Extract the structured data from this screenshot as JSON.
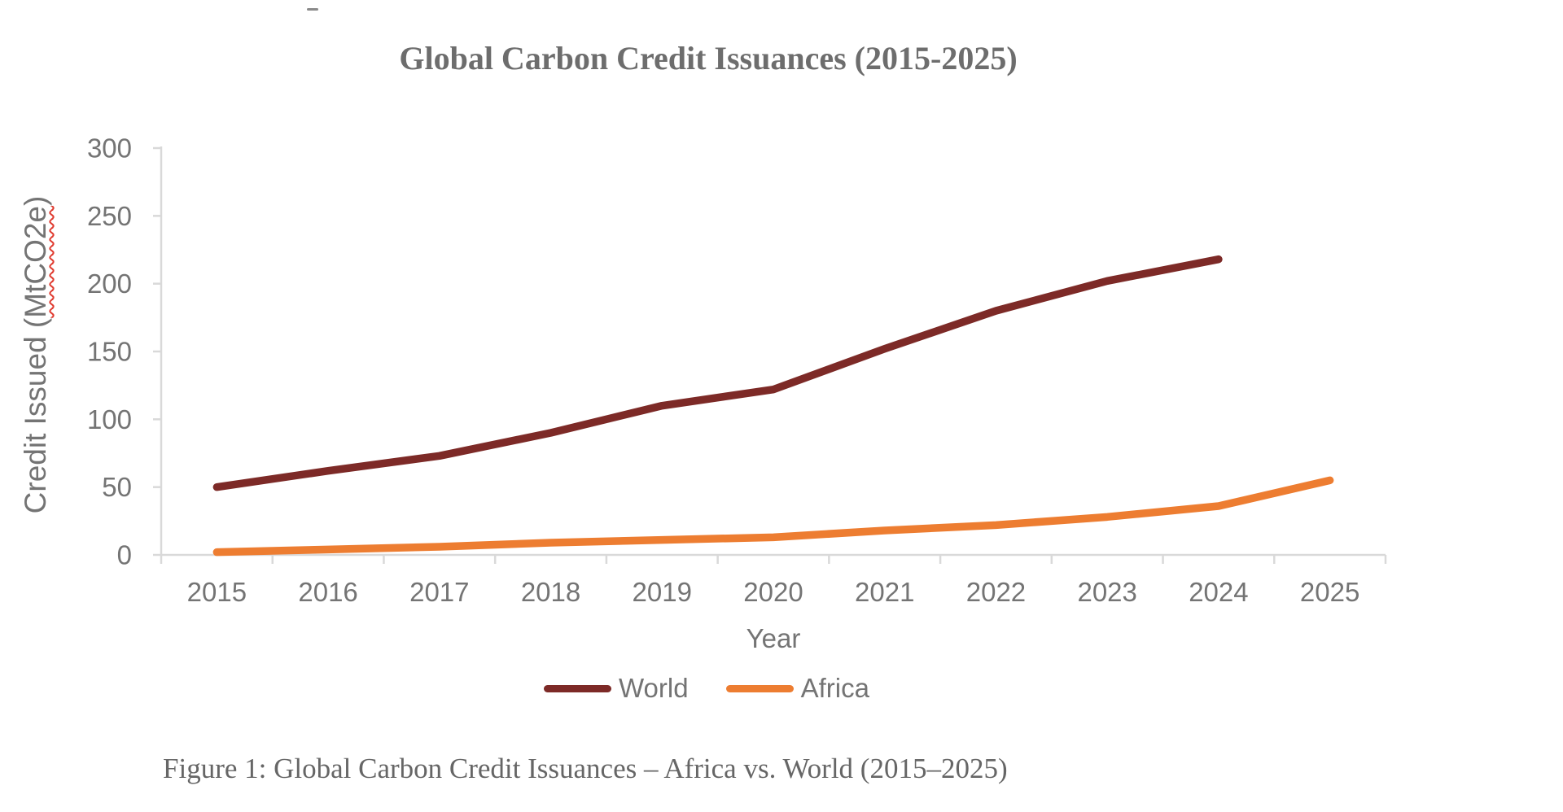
{
  "chart": {
    "title": "Global Carbon Credit Issuances (2015-2025)",
    "xlabel": "Year",
    "ylabel_prefix": "Credit Issued (",
    "ylabel_word": "MtCO2e",
    "ylabel_suffix": ")"
  },
  "chart_data": {
    "type": "line",
    "title": "Global Carbon Credit Issuances (2015-2025)",
    "xlabel": "Year",
    "ylabel": "Credit Issued (MtCO2e)",
    "categories": [
      "2015",
      "2016",
      "2017",
      "2018",
      "2019",
      "2020",
      "2021",
      "2022",
      "2023",
      "2024",
      "2025"
    ],
    "series": [
      {
        "name": "World",
        "color": "#7D2A27",
        "values": [
          50,
          62,
          73,
          90,
          110,
          122,
          152,
          180,
          202,
          218,
          null
        ]
      },
      {
        "name": "Africa",
        "color": "#ED7D31",
        "values": [
          2,
          4,
          6,
          9,
          11,
          13,
          18,
          22,
          28,
          36,
          55
        ]
      }
    ],
    "ylim": [
      0,
      300
    ],
    "yticks": [
      0,
      50,
      100,
      150,
      200,
      250,
      300
    ],
    "grid": false,
    "legend_position": "bottom",
    "axis_color": "#d9d9d9",
    "tick_label_color": "#747474"
  },
  "legend": {
    "items": [
      {
        "label": "World",
        "color": "#7D2A27"
      },
      {
        "label": "Africa",
        "color": "#ED7D31"
      }
    ]
  },
  "caption": "Figure 1: Global Carbon Credit Issuances – Africa vs. World (2015–2025)"
}
